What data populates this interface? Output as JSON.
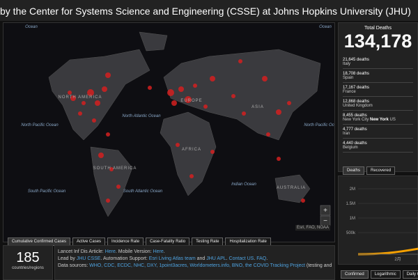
{
  "header": {
    "title": "by the Center for Systems Science and Engineering (CSSE) at Johns Hopkins University (JHU)"
  },
  "map": {
    "labels": [
      "Ocean",
      "NORTH AMERICA",
      "North Atlantic Ocean",
      "North Pacific Ocean",
      "EUROPE",
      "ASIA",
      "AFRICA",
      "SOUTH AMERICA",
      "South Pacific Ocean",
      "South Atlantic Ocean",
      "Indian Ocean",
      "AUSTRALIA",
      "North Pacific Ocean",
      "Ocean"
    ],
    "attribution": "Esri, FAO, NOAA",
    "tabs": [
      "Cumulative Confirmed Cases",
      "Active Cases",
      "Incidence Rate",
      "Case-Fatality Ratio",
      "Testing Rate",
      "Hospitalization Rate"
    ]
  },
  "count": {
    "value": "185",
    "label": "countries/regions"
  },
  "info": {
    "lines": [
      [
        "Lancet Inf Dis Article: ",
        "Here",
        ". Mobile Version: ",
        "Here",
        "."
      ],
      [
        "Lead by ",
        "JHU CSSE",
        ". Automation Support: ",
        "Esri Living Atlas team",
        " and ",
        "JHU APL",
        ". ",
        "Contact US",
        ". ",
        "FAQ",
        "."
      ],
      [
        "Data sources: ",
        "WHO, CDC, ECDC, NHC, DXY, 1point3acres, Worldometers.info, BNO, the COVID Tracking Project",
        " (testing and"
      ]
    ]
  },
  "deaths": {
    "title": "Total Deaths",
    "total": "134,178",
    "entries": [
      {
        "count": "21,645 deaths",
        "place": "Italy"
      },
      {
        "count": "18,708 deaths",
        "place": "Spain"
      },
      {
        "count": "17,167 deaths",
        "place": "France"
      },
      {
        "count": "12,868 deaths",
        "place": "United Kingdom"
      },
      {
        "count": "8,455 deaths",
        "place": [
          "New York City ",
          "New York",
          " US"
        ]
      },
      {
        "count": "4,777 deaths",
        "place": "Iran"
      },
      {
        "count": "4,440 deaths",
        "place": "Belgium"
      }
    ],
    "tabs": [
      "Deaths",
      "Recovered"
    ]
  },
  "trend": {
    "yticks": [
      "2M",
      "1.5M",
      "1M",
      "500k"
    ],
    "xlabel": "2月",
    "tabs": [
      "Confirmed",
      "Logarithmic",
      "Daily Ca"
    ]
  }
}
